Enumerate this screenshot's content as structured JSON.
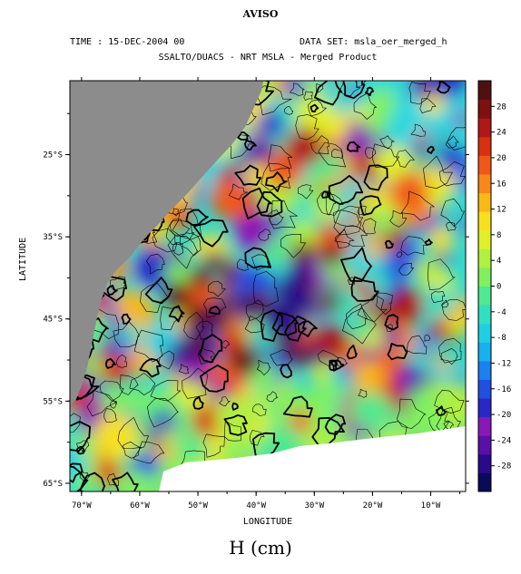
{
  "header": {
    "title": "AVISO",
    "time": "TIME : 15-DEC-2004 00",
    "dataset": "DATA SET: msla_oer_merged_h",
    "subtitle": "SSALTO/DUACS - NRT MSLA - Merged Product"
  },
  "map": {
    "region": "South Atlantic",
    "land_color": "#8c8c8c",
    "missing_color": "#ffffff",
    "contours": true
  },
  "axes": {
    "xlabel": "LONGITUDE",
    "ylabel": "LATITUDE",
    "x_ticks": [
      "70°W",
      "60°W",
      "50°W",
      "40°W",
      "30°W",
      "20°W",
      "10°W"
    ],
    "y_ticks": [
      "25°S",
      "35°S",
      "45°S",
      "55°S",
      "65°S"
    ],
    "x_tick_values": [
      -70,
      -60,
      -50,
      -40,
      -30,
      -20,
      -10
    ],
    "y_tick_values": [
      -25,
      -35,
      -45,
      -55,
      -65
    ],
    "xlim": [
      -72,
      -4
    ],
    "ylim": [
      -66,
      -16
    ]
  },
  "colorbar": {
    "unit_label": "H (cm)",
    "labels": [
      "28",
      "24",
      "20",
      "16",
      "12",
      "8",
      "4",
      "0",
      "-4",
      "-8",
      "-12",
      "-16",
      "-20",
      "-24",
      "-28"
    ],
    "values": [
      28,
      24,
      20,
      16,
      12,
      8,
      4,
      0,
      -4,
      -8,
      -12,
      -16,
      -20,
      -24,
      -28
    ],
    "range": [
      -32,
      32
    ],
    "colors": [
      "#0a0a5a",
      "#2a0a8a",
      "#5a10a8",
      "#8a18b8",
      "#2828c8",
      "#2050e0",
      "#1c80f0",
      "#18b0f0",
      "#20d0e0",
      "#30e0c0",
      "#50e890",
      "#80f060",
      "#b0f040",
      "#e0f028",
      "#f8e020",
      "#f8b818",
      "#f88818",
      "#f05818",
      "#d83010",
      "#b01818",
      "#801010",
      "#501010"
    ]
  }
}
